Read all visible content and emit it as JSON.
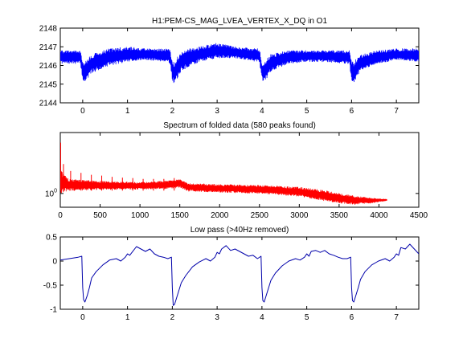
{
  "chart_data": [
    {
      "type": "line",
      "title": "H1:PEM-CS_MAG_LVEA_VERTEX_X_DQ in O1",
      "xlabel": "",
      "ylabel": "",
      "xlim": [
        -0.5,
        7.5
      ],
      "ylim": [
        2144,
        2148
      ],
      "xticks": [
        0,
        1,
        2,
        3,
        4,
        5,
        6,
        7
      ],
      "yticks": [
        2144,
        2145,
        2146,
        2147,
        2148
      ],
      "color": "#0000ff",
      "series": [
        {
          "name": "",
          "band": true,
          "x": [
            -0.5,
            -0.05,
            0.0,
            0.05,
            0.2,
            0.6,
            1.0,
            1.4,
            1.9,
            1.95,
            2.0,
            2.05,
            2.2,
            2.6,
            3.0,
            3.4,
            3.9,
            3.95,
            4.0,
            4.05,
            4.2,
            4.6,
            5.0,
            5.4,
            5.9,
            5.95,
            6.0,
            6.05,
            6.2,
            6.6,
            7.0,
            7.5
          ],
          "upper": [
            2146.8,
            2146.8,
            2146.2,
            2146.2,
            2146.6,
            2146.9,
            2147.0,
            2146.9,
            2146.9,
            2146.8,
            2146.2,
            2146.2,
            2146.8,
            2147.0,
            2147.2,
            2147.0,
            2146.9,
            2146.8,
            2146.2,
            2146.2,
            2146.6,
            2146.8,
            2146.8,
            2146.8,
            2146.8,
            2146.8,
            2146.2,
            2146.2,
            2146.6,
            2146.8,
            2146.9,
            2146.9
          ],
          "lower": [
            2146.1,
            2146.1,
            2145.2,
            2145.1,
            2145.6,
            2146.0,
            2146.2,
            2146.3,
            2146.2,
            2146.1,
            2145.2,
            2145.0,
            2145.7,
            2146.2,
            2146.4,
            2146.4,
            2146.2,
            2146.1,
            2145.2,
            2145.1,
            2145.7,
            2146.1,
            2146.2,
            2146.2,
            2146.1,
            2146.1,
            2145.2,
            2145.1,
            2145.7,
            2146.1,
            2146.3,
            2146.2
          ]
        }
      ]
    },
    {
      "type": "line",
      "title": "Spectrum of folded data (580 peaks found)",
      "xlabel": "",
      "ylabel": "",
      "xlim": [
        0,
        4500
      ],
      "yscale": "log",
      "xticks": [
        0,
        500,
        1000,
        1500,
        2000,
        2500,
        3000,
        3500,
        4000,
        4500
      ],
      "yticks": [
        1
      ],
      "ytick_labels": [
        "10^0"
      ],
      "color": "#ff0000",
      "series": [
        {
          "name": "",
          "band": true,
          "x": [
            0,
            30,
            100,
            500,
            1000,
            1400,
            1500,
            1600,
            2000,
            2500,
            3000,
            3300,
            3500,
            3700,
            3900,
            4100
          ],
          "upper": [
            1.6,
            1.45,
            1.3,
            1.25,
            1.22,
            1.26,
            1.29,
            1.2,
            1.18,
            1.16,
            1.12,
            1.06,
            1.0,
            0.96,
            0.92,
            0.9
          ],
          "lower": [
            1.0,
            1.02,
            1.05,
            1.07,
            1.08,
            1.09,
            1.12,
            1.04,
            1.02,
            1.0,
            0.95,
            0.88,
            0.84,
            0.82,
            0.84,
            0.88
          ]
        }
      ],
      "peaks": [
        {
          "x": 5,
          "y": 2.5
        },
        {
          "x": 40,
          "y": 1.7
        },
        {
          "x": 130,
          "y": 1.5
        },
        {
          "x": 260,
          "y": 1.45
        },
        {
          "x": 390,
          "y": 1.4
        },
        {
          "x": 520,
          "y": 1.38
        },
        {
          "x": 650,
          "y": 1.35
        },
        {
          "x": 780,
          "y": 1.33
        },
        {
          "x": 910,
          "y": 1.32
        },
        {
          "x": 1040,
          "y": 1.3
        },
        {
          "x": 1170,
          "y": 1.3
        },
        {
          "x": 1300,
          "y": 1.3
        },
        {
          "x": 1430,
          "y": 1.32
        }
      ]
    },
    {
      "type": "line",
      "title": "Low pass (>40Hz removed)",
      "xlabel": "",
      "ylabel": "",
      "xlim": [
        -0.5,
        7.5
      ],
      "ylim": [
        -1,
        0.5
      ],
      "xticks": [
        0,
        1,
        2,
        3,
        4,
        5,
        6,
        7
      ],
      "yticks": [
        -1,
        -0.5,
        0,
        0.5
      ],
      "color": "#0000aa",
      "series": [
        {
          "name": "",
          "x": [
            -0.5,
            -0.3,
            -0.1,
            -0.02,
            0.0,
            0.02,
            0.05,
            0.1,
            0.15,
            0.2,
            0.3,
            0.45,
            0.6,
            0.75,
            0.85,
            0.95,
            1.0,
            1.05,
            1.1,
            1.2,
            1.3,
            1.4,
            1.5,
            1.6,
            1.7,
            1.8,
            1.9,
            1.98,
            2.0,
            2.02,
            2.05,
            2.1,
            2.15,
            2.2,
            2.3,
            2.45,
            2.6,
            2.75,
            2.85,
            2.95,
            3.0,
            3.05,
            3.1,
            3.2,
            3.3,
            3.4,
            3.5,
            3.6,
            3.7,
            3.8,
            3.9,
            3.98,
            4.0,
            4.02,
            4.05,
            4.1,
            4.15,
            4.2,
            4.3,
            4.45,
            4.6,
            4.75,
            4.85,
            4.95,
            5.0,
            5.05,
            5.1,
            5.2,
            5.3,
            5.4,
            5.5,
            5.6,
            5.7,
            5.8,
            5.9,
            5.98,
            6.0,
            6.02,
            6.05,
            6.1,
            6.15,
            6.2,
            6.3,
            6.45,
            6.6,
            6.75,
            6.85,
            6.95,
            7.0,
            7.05,
            7.1,
            7.2,
            7.3,
            7.4,
            7.5
          ],
          "y": [
            0.02,
            0.05,
            0.08,
            0.1,
            -0.55,
            -0.8,
            -0.85,
            -0.72,
            -0.55,
            -0.35,
            -0.22,
            -0.08,
            0.02,
            0.05,
            0.0,
            0.08,
            0.15,
            0.12,
            0.18,
            0.3,
            0.25,
            0.2,
            0.25,
            0.15,
            0.1,
            0.08,
            0.05,
            0.08,
            -0.55,
            -0.92,
            -0.9,
            -0.75,
            -0.6,
            -0.45,
            -0.3,
            -0.12,
            -0.02,
            0.05,
            0.0,
            0.08,
            0.18,
            0.15,
            0.25,
            0.32,
            0.22,
            0.25,
            0.2,
            0.15,
            0.1,
            0.12,
            0.05,
            0.1,
            -0.55,
            -0.82,
            -0.85,
            -0.7,
            -0.55,
            -0.4,
            -0.25,
            -0.1,
            0.0,
            0.05,
            0.02,
            0.08,
            0.15,
            0.1,
            0.2,
            0.22,
            0.18,
            0.22,
            0.15,
            0.12,
            0.08,
            0.05,
            0.05,
            0.08,
            -0.55,
            -0.82,
            -0.85,
            -0.7,
            -0.55,
            -0.38,
            -0.22,
            -0.08,
            0.0,
            0.05,
            0.0,
            0.08,
            0.15,
            0.12,
            0.28,
            0.25,
            0.35,
            0.25,
            0.15
          ]
        }
      ]
    }
  ]
}
